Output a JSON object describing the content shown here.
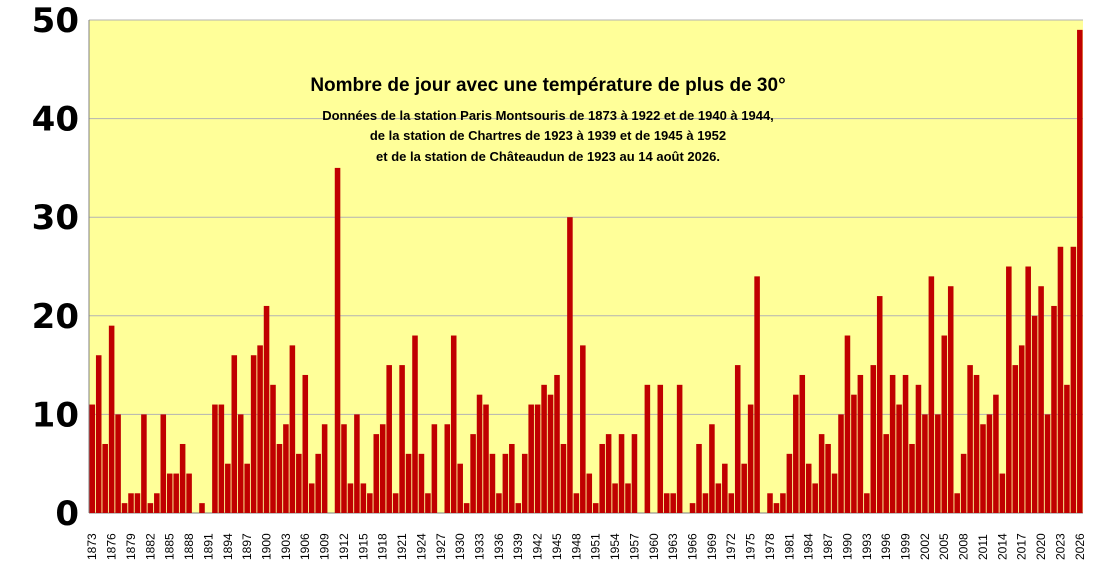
{
  "chart_data": {
    "type": "bar",
    "title": "Nombre de jour avec une température de plus de 30°",
    "subtitle_lines": [
      "Données de la station Paris Montsouris de 1873 à 1922 et de 1940 à 1944,",
      "de la station de Chartres de 1923 à 1939 et de 1945 à 1952",
      "et de la station de Châteaudun de 1923 au 14 août 2026."
    ],
    "xlabel": "",
    "ylabel": "",
    "ylim": [
      0,
      50
    ],
    "yticks": [
      0,
      10,
      20,
      30,
      40,
      50
    ],
    "grid": true,
    "legend": "none",
    "colors": {
      "bar": "#c00000",
      "plot_bg": "#ffff99",
      "grid": "#b3b3b3"
    },
    "categories": [
      1873,
      1874,
      1875,
      1876,
      1877,
      1878,
      1879,
      1880,
      1881,
      1882,
      1883,
      1884,
      1885,
      1886,
      1887,
      1888,
      1889,
      1890,
      1891,
      1892,
      1893,
      1894,
      1895,
      1896,
      1897,
      1898,
      1899,
      1900,
      1901,
      1902,
      1903,
      1904,
      1905,
      1906,
      1907,
      1908,
      1909,
      1910,
      1911,
      1912,
      1913,
      1914,
      1915,
      1916,
      1917,
      1918,
      1919,
      1920,
      1921,
      1922,
      1923,
      1924,
      1925,
      1926,
      1927,
      1928,
      1929,
      1930,
      1931,
      1932,
      1933,
      1934,
      1935,
      1936,
      1937,
      1938,
      1939,
      1940,
      1941,
      1942,
      1943,
      1944,
      1945,
      1946,
      1947,
      1948,
      1949,
      1950,
      1951,
      1952,
      1953,
      1954,
      1955,
      1956,
      1957,
      1958,
      1959,
      1960,
      1961,
      1962,
      1963,
      1964,
      1965,
      1966,
      1967,
      1968,
      1969,
      1970,
      1971,
      1972,
      1973,
      1974,
      1975,
      1976,
      1977,
      1978,
      1979,
      1980,
      1981,
      1982,
      1983,
      1984,
      1985,
      1986,
      1987,
      1988,
      1989,
      1990,
      1991,
      1992,
      1993,
      1994,
      1995,
      1996,
      1997,
      1998,
      1999,
      2000,
      2001,
      2002,
      2003,
      2004,
      2005,
      2006,
      2007,
      2008,
      2009,
      2010,
      2011,
      2012,
      2013,
      2014,
      2015,
      2016,
      2017,
      2018,
      2019,
      2020,
      2021,
      2022,
      2023,
      2024,
      2025,
      2026
    ],
    "values": [
      11,
      16,
      7,
      19,
      10,
      1,
      2,
      2,
      10,
      1,
      2,
      10,
      4,
      4,
      7,
      4,
      0,
      1,
      0,
      11,
      11,
      5,
      16,
      10,
      5,
      16,
      17,
      21,
      13,
      7,
      9,
      17,
      6,
      14,
      3,
      6,
      9,
      0,
      35,
      9,
      3,
      10,
      3,
      2,
      8,
      9,
      15,
      2,
      15,
      6,
      18,
      6,
      2,
      9,
      0,
      9,
      18,
      5,
      1,
      8,
      12,
      11,
      6,
      2,
      6,
      7,
      1,
      6,
      11,
      11,
      13,
      12,
      14,
      7,
      30,
      2,
      17,
      4,
      1,
      7,
      8,
      3,
      8,
      3,
      8,
      0,
      13,
      0,
      13,
      2,
      2,
      13,
      0,
      1,
      7,
      2,
      9,
      3,
      5,
      2,
      15,
      5,
      11,
      24,
      0,
      2,
      1,
      2,
      6,
      12,
      14,
      5,
      3,
      8,
      7,
      4,
      10,
      18,
      12,
      14,
      2,
      15,
      22,
      8,
      14,
      11,
      14,
      7,
      13,
      10,
      24,
      10,
      18,
      23,
      2,
      6,
      15,
      14,
      9,
      10,
      12,
      4,
      25,
      15,
      17,
      25,
      20,
      23,
      10,
      21,
      27,
      13,
      27,
      49
    ],
    "tick_labels": [
      "1873",
      "1876",
      "1879",
      "1882",
      "1885",
      "1888",
      "1891",
      "1894",
      "1897",
      "1900",
      "1903",
      "1906",
      "1909",
      "1912",
      "1915",
      "1918",
      "1921",
      "1924",
      "1927",
      "1930",
      "1933",
      "1936",
      "1939",
      "1942",
      "1945",
      "1948",
      "1951",
      "1954",
      "1957",
      "1960",
      "1963",
      "1966",
      "1969",
      "1972",
      "1975",
      "1978",
      "1981",
      "1984",
      "1987",
      "1990",
      "1993",
      "1996",
      "1999",
      "2002",
      "2005",
      "2008",
      "2011",
      "2014",
      "2017",
      "2020",
      "2023",
      "2026"
    ]
  }
}
